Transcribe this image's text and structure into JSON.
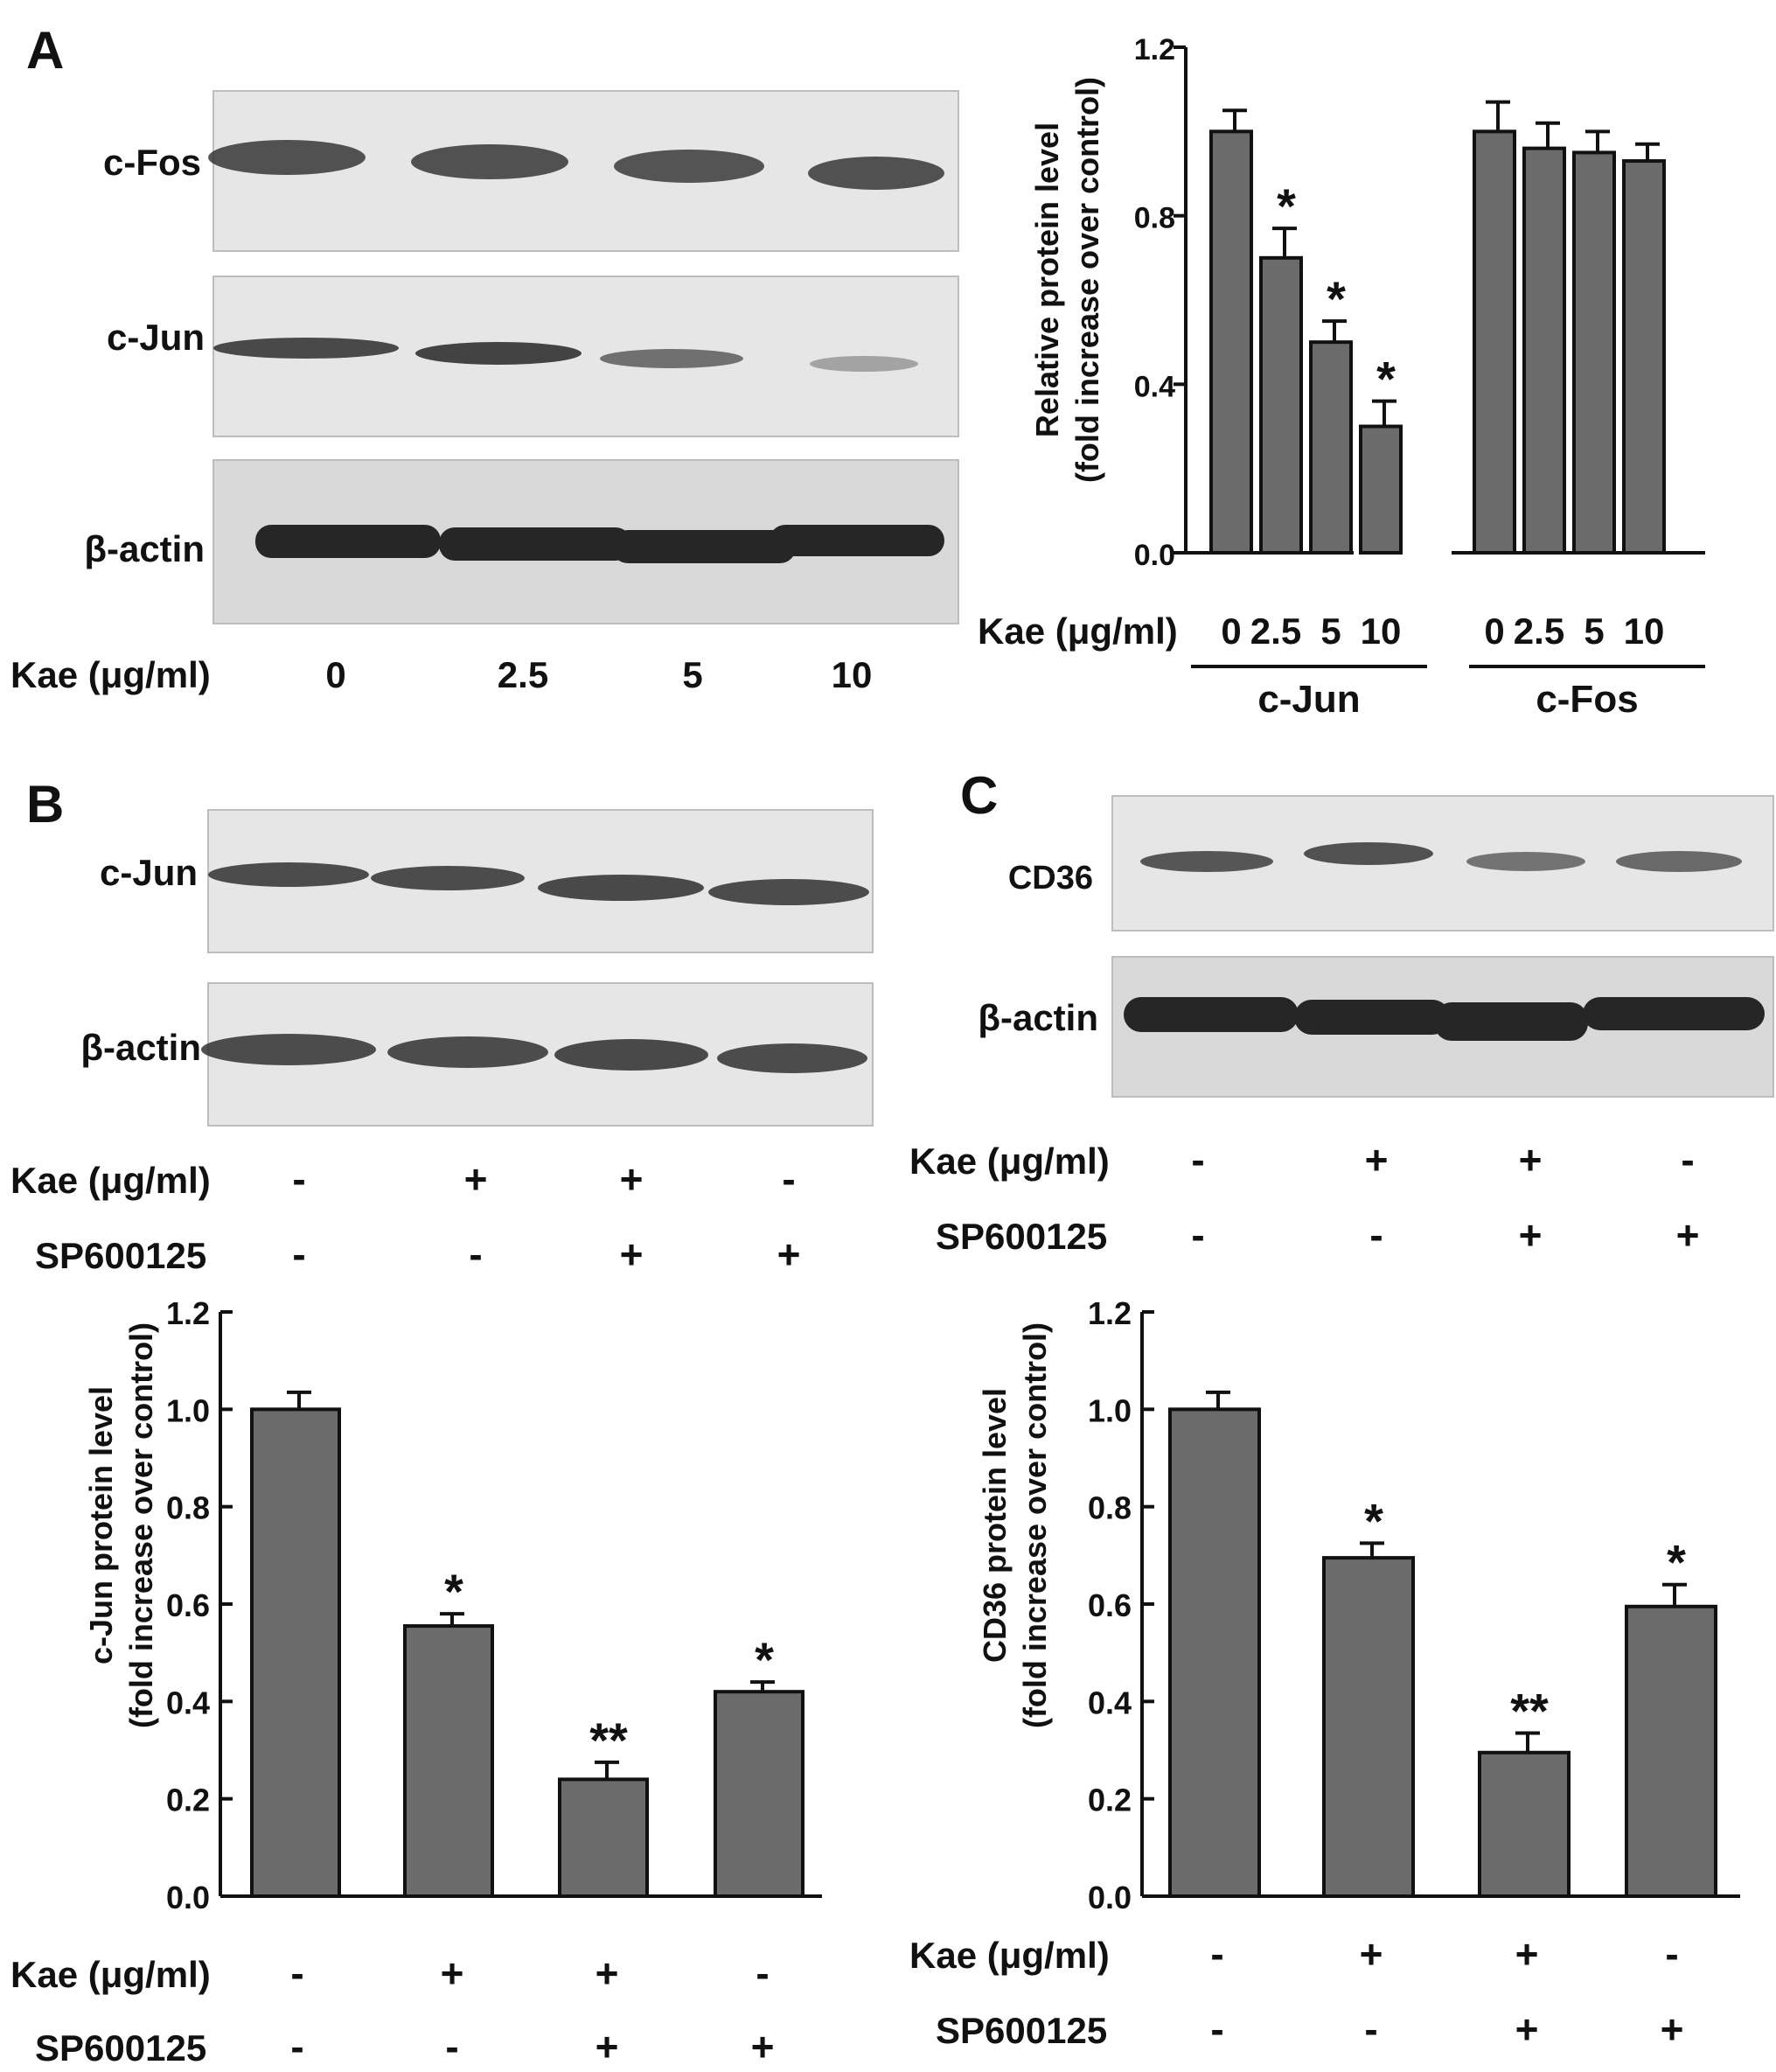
{
  "panel_letters": {
    "a": "A",
    "b": "B",
    "c": "C"
  },
  "blots": {
    "a": {
      "rows": [
        "c-Fos",
        "c-Jun",
        "β-actin"
      ],
      "conc_label": "Kae (μg/ml)",
      "lanes": [
        "0",
        "2.5",
        "5",
        "10"
      ]
    },
    "b": {
      "rows": [
        "c-Jun",
        "β-actin"
      ],
      "treatments": [
        {
          "label": "Kae (μg/ml)",
          "signs": [
            "-",
            "+",
            "+",
            "-"
          ]
        },
        {
          "label": "SP600125",
          "signs": [
            "-",
            "-",
            "+",
            "+"
          ]
        }
      ]
    },
    "c": {
      "rows": [
        "CD36",
        "β-actin"
      ],
      "treatments": [
        {
          "label": "Kae (μg/ml)",
          "signs": [
            "-",
            "+",
            "+",
            "-"
          ]
        },
        {
          "label": "SP600125",
          "signs": [
            "-",
            "-",
            "+",
            "+"
          ]
        }
      ]
    }
  },
  "chart_data": [
    {
      "type": "bar",
      "ylabel_line1": "Relative protein level",
      "ylabel_line2": "(fold increase over control)",
      "ylim": [
        0,
        1.2
      ],
      "yticks": [
        "0.0",
        "0.4",
        "0.8",
        "1.2"
      ],
      "xaxis_label": "Kae (μg/ml)",
      "groups": [
        {
          "name": "c-Jun",
          "categories": [
            "0",
            "2.5",
            "5",
            "10"
          ],
          "values": [
            1.0,
            0.7,
            0.5,
            0.3
          ],
          "errors": [
            0.05,
            0.07,
            0.05,
            0.06
          ],
          "marks": [
            "",
            "*",
            "*",
            "*"
          ]
        },
        {
          "name": "c-Fos",
          "categories": [
            "0",
            "2.5",
            "5",
            "10"
          ],
          "values": [
            1.0,
            0.96,
            0.95,
            0.93
          ],
          "errors": [
            0.07,
            0.06,
            0.05,
            0.04
          ],
          "marks": [
            "",
            "",
            "",
            ""
          ]
        }
      ]
    },
    {
      "type": "bar",
      "ylabel_line1": "c-Jun protein level",
      "ylabel_line2": "(fold increase over control)",
      "ylim": [
        0,
        1.2
      ],
      "yticks": [
        "0.0",
        "0.2",
        "0.4",
        "0.6",
        "0.8",
        "1.0",
        "1.2"
      ],
      "values": [
        1.0,
        0.555,
        0.24,
        0.42
      ],
      "errors": [
        0.035,
        0.025,
        0.035,
        0.02
      ],
      "marks": [
        "",
        "*",
        "**",
        "*"
      ],
      "treatments": [
        {
          "label": "Kae (μg/ml)",
          "signs": [
            "-",
            "+",
            "+",
            "-"
          ]
        },
        {
          "label": "SP600125",
          "signs": [
            "-",
            "-",
            "+",
            "+"
          ]
        }
      ]
    },
    {
      "type": "bar",
      "ylabel_line1": "CD36 protein level",
      "ylabel_line2": "(fold increase over control)",
      "ylim": [
        0,
        1.2
      ],
      "yticks": [
        "0.0",
        "0.2",
        "0.4",
        "0.6",
        "0.8",
        "1.0",
        "1.2"
      ],
      "values": [
        1.0,
        0.695,
        0.295,
        0.595
      ],
      "errors": [
        0.035,
        0.03,
        0.04,
        0.045
      ],
      "marks": [
        "",
        "*",
        "**",
        "*"
      ],
      "treatments": [
        {
          "label": "Kae (μg/ml)",
          "signs": [
            "-",
            "+",
            "+",
            "-"
          ]
        },
        {
          "label": "SP600125",
          "signs": [
            "-",
            "-",
            "+",
            "+"
          ]
        }
      ]
    }
  ]
}
